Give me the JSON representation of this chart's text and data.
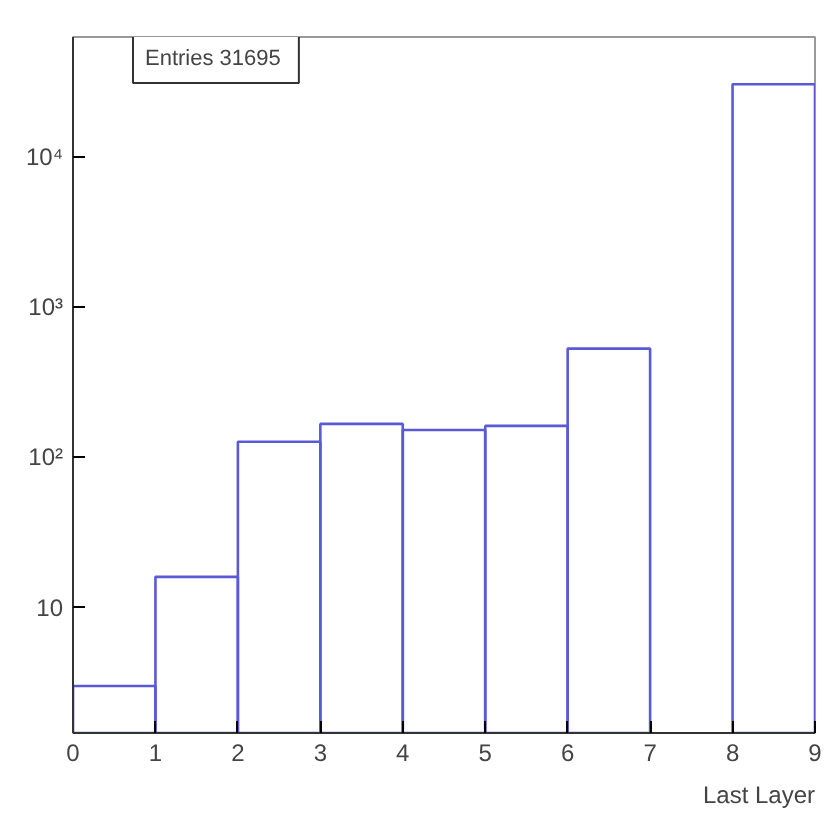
{
  "chart_data": {
    "type": "histogram",
    "xlabel": "Last Layer",
    "bins": [
      0,
      1,
      2,
      3,
      4,
      5,
      6,
      7,
      8,
      9
    ],
    "values": [
      3,
      16,
      127,
      167,
      152,
      162,
      530,
      null,
      30500
    ],
    "color": "#5a5ad6",
    "log": "y",
    "xlim": [
      0,
      9
    ],
    "xticks": [
      0,
      1,
      2,
      3,
      4,
      5,
      6,
      7,
      8,
      9
    ],
    "ylim": [
      1.46,
      63000
    ],
    "yticks": [
      10,
      {
        "value": 100,
        "label": "10²"
      },
      {
        "value": 1000,
        "label": "10³"
      },
      {
        "value": 10000,
        "label": "10⁴"
      }
    ],
    "annotations": [
      "Entries  31695"
    ],
    "grid": false
  }
}
